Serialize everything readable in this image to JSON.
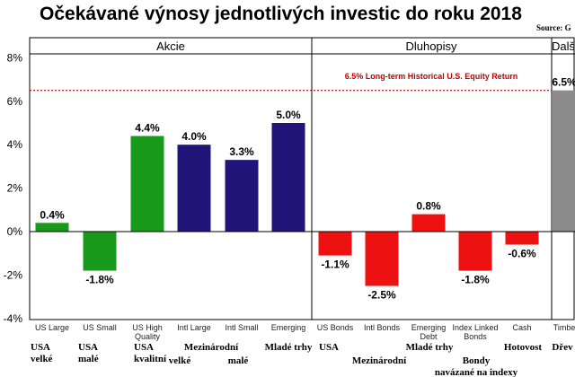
{
  "title": "Očekávané výnosy jednotlivých investic do roku 2018",
  "source": "Source: G",
  "chart_data": {
    "type": "bar",
    "ylim": [
      -4,
      8
    ],
    "yticks": [
      8,
      6,
      4,
      2,
      0,
      -2,
      -4
    ],
    "ytick_labels": [
      "8%",
      "6%",
      "4%",
      "2%",
      "0%",
      "-2%",
      "-4%"
    ],
    "groups": [
      {
        "label": "Akcie"
      },
      {
        "label": "Dluhopisy"
      },
      {
        "label": "Dalš"
      }
    ],
    "bars": [
      {
        "category": "US Large",
        "value": 0.4,
        "label": "0.4%",
        "color": "#1a9a1a"
      },
      {
        "category": "US Small",
        "value": -1.8,
        "label": "-1.8%",
        "color": "#1a9a1a"
      },
      {
        "category": "US High Quality",
        "value": 4.4,
        "label": "4.4%",
        "color": "#1a9a1a"
      },
      {
        "category": "Intl Large",
        "value": 4.0,
        "label": "4.0%",
        "color": "#22157a"
      },
      {
        "category": "Intl Small",
        "value": 3.3,
        "label": "3.3%",
        "color": "#22157a"
      },
      {
        "category": "Emerging",
        "value": 5.0,
        "label": "5.0%",
        "color": "#22157a"
      },
      {
        "category": "US Bonds",
        "value": -1.1,
        "label": "-1.1%",
        "color": "#ee1111"
      },
      {
        "category": "Intl Bonds",
        "value": -2.5,
        "label": "-2.5%",
        "color": "#ee1111"
      },
      {
        "category": "Emerging Debt",
        "value": 0.8,
        "label": "0.8%",
        "color": "#ee1111"
      },
      {
        "category": "Index Linked Bonds",
        "value": -1.8,
        "label": "-1.8%",
        "color": "#ee1111"
      },
      {
        "category": "Cash",
        "value": -0.6,
        "label": "-0.6%",
        "color": "#ee1111"
      },
      {
        "category": "Timbe",
        "value": 6.5,
        "label": "6.5%",
        "color": "#8c8c8c"
      }
    ],
    "czech_labels": [
      {
        "lines": [
          "USA",
          "velké"
        ]
      },
      {
        "lines": [
          "USA",
          "malé"
        ]
      },
      {
        "lines": [
          "USA",
          "kvalitní"
        ]
      },
      {
        "lines": [
          "Mezinárodní"
        ]
      },
      {
        "lines": [
          "velké"
        ]
      },
      {
        "lines": [
          "malé"
        ]
      },
      {
        "lines": [
          "Mladé trhy"
        ]
      },
      {
        "lines": [
          "USA"
        ]
      },
      {
        "lines": [
          "Mezinárodní"
        ]
      },
      {
        "lines": [
          "Mladé trhy"
        ]
      },
      {
        "lines": [
          "Bondy",
          "navázané na indexy"
        ]
      },
      {
        "lines": [
          "Hotovost"
        ]
      },
      {
        "lines": [
          "Dřev"
        ]
      }
    ],
    "reference_line": {
      "value": 6.5,
      "label": "6.5% Long-term Historical U.S. Equity Return",
      "color": "#c00000"
    },
    "grid": false,
    "legend": "none"
  }
}
